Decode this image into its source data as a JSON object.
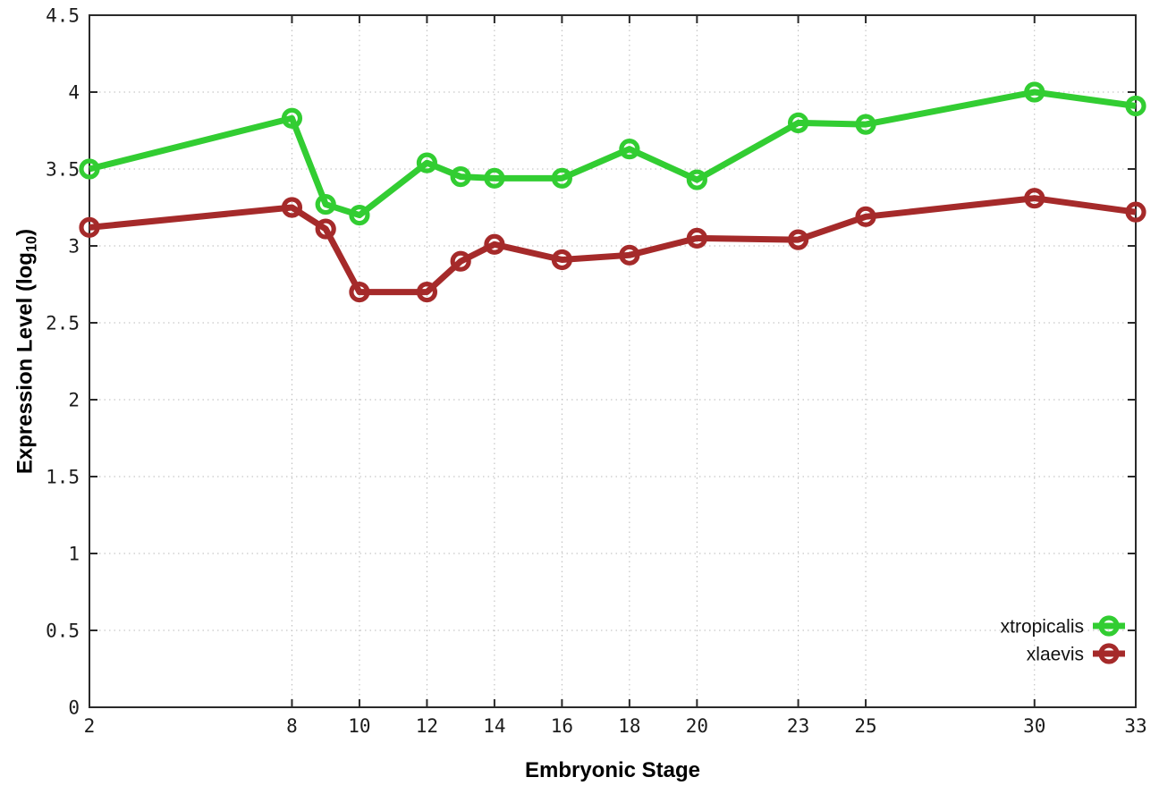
{
  "chart_data": {
    "type": "line",
    "title": "",
    "xlabel": "Embryonic Stage",
    "ylabel": "Expression Level (log10)",
    "ylabel_parts": {
      "main": "Expression Level (log",
      "sub": "10",
      "end": ")"
    },
    "x": [
      2,
      8,
      9,
      10,
      12,
      13,
      14,
      16,
      18,
      20,
      23,
      25,
      30,
      33
    ],
    "series": [
      {
        "name": "xtropicalis",
        "color": "#32cd32",
        "values": [
          3.5,
          3.83,
          3.27,
          3.2,
          3.54,
          3.45,
          3.44,
          3.44,
          3.63,
          3.43,
          3.8,
          3.79,
          4.0,
          3.91
        ]
      },
      {
        "name": "xlaevis",
        "color": "#a52a2a",
        "values": [
          3.12,
          3.25,
          3.11,
          2.7,
          2.7,
          2.9,
          3.01,
          2.91,
          2.94,
          3.05,
          3.04,
          3.19,
          3.31,
          3.22
        ]
      }
    ],
    "xlim": [
      2,
      33
    ],
    "ylim": [
      0,
      4.5
    ],
    "xticks": [
      2,
      8,
      10,
      12,
      14,
      16,
      18,
      20,
      23,
      25,
      30,
      33
    ],
    "xtick_labels": [
      "2",
      "8",
      "10",
      "12",
      "14",
      "16",
      "18",
      "20",
      "23",
      "25",
      "30",
      "33"
    ],
    "yticks": [
      0,
      0.5,
      1,
      1.5,
      2,
      2.5,
      3,
      3.5,
      4,
      4.5
    ],
    "ytick_labels": [
      "0",
      "0.5",
      "1",
      "1.5",
      "2",
      "2.5",
      "3",
      "3.5",
      "4",
      "4.5"
    ],
    "grid": true,
    "legend_position": "bottom-right",
    "marker": "open-circle"
  }
}
